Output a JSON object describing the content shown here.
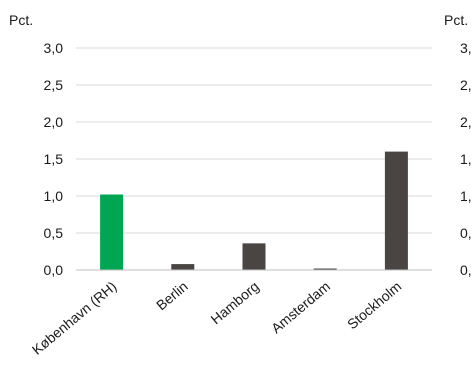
{
  "chart_data": {
    "type": "bar",
    "categories": [
      "København (RH)",
      "Berlin",
      "Hamborg",
      "Amsterdam",
      "Stockholm"
    ],
    "values": [
      1.02,
      0.08,
      0.36,
      0.02,
      1.6
    ],
    "bar_colors": [
      "#00a651",
      "#4a4542",
      "#4a4542",
      "#4a4542",
      "#4a4542"
    ],
    "y_unit_left": "Pct.",
    "y_unit_right": "Pct.",
    "ylim": [
      0,
      3.0
    ],
    "y_ticks": [
      "0,0",
      "0,5",
      "1,0",
      "1,5",
      "2,0",
      "2,5",
      "3,0"
    ],
    "y_ticks_right": [
      "0,",
      "0,",
      "1,",
      "1,",
      "2,",
      "2,",
      "3,"
    ],
    "grid": true,
    "grid_color": "#d9d9d9"
  }
}
